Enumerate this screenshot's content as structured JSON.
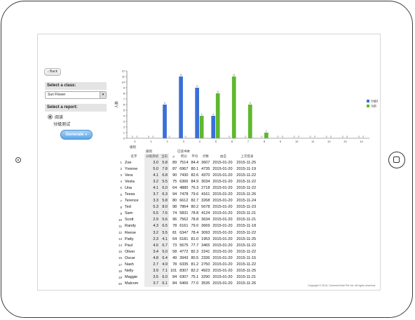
{
  "app": {
    "back_label": "‹ Back",
    "class_header": "Select a class:",
    "class_value": "Sun Flower",
    "report_header": "Select a report:",
    "report_options": [
      "阅读",
      "分级测试"
    ],
    "generate_label": "Generate »",
    "copyright": "Copyright © 2014, CommonTown Pte Ltd. All rights reserved."
  },
  "chart_data": {
    "type": "bar",
    "ylabel": "人数",
    "xlabel": "级别",
    "ylim": [
      0,
      12
    ],
    "yticks": [
      0,
      1,
      2,
      3,
      4,
      5,
      6,
      7,
      8,
      9,
      10,
      11,
      12
    ],
    "categories": [
      "0",
      "1",
      "2",
      "3",
      "4",
      "5",
      "6",
      "7",
      "8",
      "9",
      "10",
      "11",
      "12",
      "13",
      "14"
    ],
    "series": [
      {
        "name": "分级测试",
        "color": "#3a6fd8",
        "values": [
          0,
          0,
          6,
          11,
          9,
          4,
          0,
          0,
          0,
          0,
          0,
          0,
          0,
          0,
          0
        ]
      },
      {
        "name": "当前",
        "color": "#5fb82e",
        "values": [
          0,
          0,
          0,
          0,
          4,
          8,
          11,
          6,
          1,
          0,
          0,
          0,
          0,
          0,
          0
        ]
      }
    ]
  },
  "table": {
    "section_titles": {
      "level": "级别",
      "read": "已读书本"
    },
    "headers": [
      "名字",
      "分级测试",
      "当前",
      "#",
      "积分",
      "平均",
      "点数",
      "由自",
      "上次登录"
    ],
    "rows": [
      [
        "1",
        "Zoe",
        "3.0",
        "5.8",
        "89",
        "7514",
        "84.4",
        "3607",
        "2015-01-20",
        "2015-11-25"
      ],
      [
        "2",
        "Yvonne",
        "5.0",
        "7.8",
        "87",
        "6967",
        "80.1",
        "4735",
        "2015-01-20",
        "2015-11-19"
      ],
      [
        "3",
        "Vera",
        "4.1",
        "6.8",
        "90",
        "7430",
        "82.6",
        "4370",
        "2015-01-20",
        "2015-11-22"
      ],
      [
        "4",
        "Vesta",
        "3.2",
        "5.5",
        "75",
        "6366",
        "84.9",
        "3034",
        "2015-01-20",
        "2015-11-22"
      ],
      [
        "5",
        "Una",
        "4.1",
        "6.0",
        "64",
        "4880",
        "76.3",
        "2718",
        "2015-01-20",
        "2015-11-22"
      ],
      [
        "6",
        "Tessa",
        "3.7",
        "6.3",
        "94",
        "7478",
        "79.6",
        "4161",
        "2015-01-20",
        "2015-11-26"
      ],
      [
        "7",
        "Terence",
        "3.3",
        "5.8",
        "80",
        "6612",
        "82.7",
        "3268",
        "2015-01-20",
        "2015-11-24"
      ],
      [
        "8",
        "Ted",
        "5.3",
        "8.0",
        "98",
        "7864",
        "80.2",
        "5678",
        "2015-01-20",
        "2015-11-23"
      ],
      [
        "9",
        "Sam",
        "5.5",
        "7.6",
        "74",
        "5831",
        "78.8",
        "4124",
        "2015-01-20",
        "2015-11-21"
      ],
      [
        "10",
        "Scott",
        "2.9",
        "5.6",
        "96",
        "7562",
        "78.8",
        "3634",
        "2015-01-20",
        "2015-11-21"
      ],
      [
        "11",
        "Randy",
        "4.3",
        "6.5",
        "78",
        "6161",
        "79.0",
        "3669",
        "2015-01-20",
        "2015-11-18"
      ],
      [
        "12",
        "Reese",
        "3.2",
        "5.5",
        "81",
        "6347",
        "78.4",
        "3093",
        "2015-01-20",
        "2015-11-22"
      ],
      [
        "13",
        "Patty",
        "2.3",
        "4.1",
        "64",
        "5181",
        "81.0",
        "1953",
        "2015-01-20",
        "2015-11-25"
      ],
      [
        "14",
        "Paul",
        "4.6",
        "6.7",
        "73",
        "5675",
        "77.7",
        "3465",
        "2015-01-20",
        "2015-11-22"
      ],
      [
        "15",
        "Oliver",
        "3.4",
        "5.0",
        "58",
        "4772",
        "82.3",
        "2241",
        "2015-01-20",
        "2015-11-22"
      ],
      [
        "16",
        "Oscar",
        "4.8",
        "6.4",
        "49",
        "3943",
        "80.5",
        "2336",
        "2015-01-20",
        "2015-11-15"
      ],
      [
        "17",
        "Nash",
        "2.7",
        "4.9",
        "78",
        "6335",
        "81.2",
        "2750",
        "2015-01-20",
        "2015-11-22"
      ],
      [
        "18",
        "Nelly",
        "3.9",
        "7.1",
        "101",
        "8307",
        "82.2",
        "4923",
        "2015-01-20",
        "2015-11-25"
      ],
      [
        "19",
        "Maggie",
        "3.5",
        "6.0",
        "84",
        "6307",
        "75.1",
        "3290",
        "2015-01-20",
        "2015-11-21"
      ],
      [
        "20",
        "Malcom",
        "3.7",
        "6.1",
        "84",
        "6466",
        "77.0",
        "3535",
        "2015-01-20",
        "2015-11-26"
      ]
    ]
  }
}
